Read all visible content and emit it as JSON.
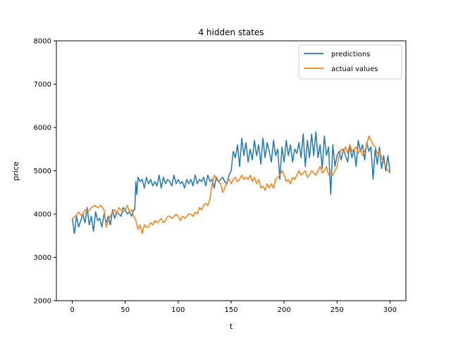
{
  "chart_data": {
    "type": "line",
    "title": "4 hidden states",
    "xlabel": "t",
    "ylabel": "price",
    "xlim": [
      -15,
      315
    ],
    "ylim": [
      2000,
      8000
    ],
    "xticks": [
      0,
      50,
      100,
      150,
      200,
      250,
      300
    ],
    "yticks": [
      2000,
      3000,
      4000,
      5000,
      6000,
      7000,
      8000
    ],
    "grid": false,
    "legend_position": "top-right",
    "colors": {
      "predictions": "#1f77b4",
      "actual": "#ff7f0e"
    },
    "series": [
      {
        "name": "predictions",
        "x": [
          0,
          2,
          4,
          6,
          8,
          10,
          12,
          14,
          16,
          18,
          20,
          22,
          24,
          26,
          28,
          30,
          32,
          34,
          36,
          38,
          40,
          42,
          44,
          46,
          48,
          50,
          52,
          54,
          56,
          58,
          59,
          60,
          61,
          62,
          64,
          66,
          68,
          70,
          72,
          74,
          76,
          78,
          80,
          82,
          84,
          86,
          88,
          90,
          92,
          94,
          96,
          98,
          100,
          102,
          104,
          106,
          108,
          110,
          112,
          114,
          116,
          118,
          120,
          122,
          124,
          126,
          128,
          130,
          132,
          134,
          136,
          138,
          140,
          142,
          144,
          146,
          148,
          149,
          150,
          152,
          154,
          156,
          158,
          160,
          162,
          164,
          166,
          168,
          170,
          172,
          174,
          176,
          178,
          180,
          182,
          184,
          186,
          188,
          190,
          192,
          194,
          196,
          198,
          200,
          202,
          204,
          206,
          208,
          210,
          212,
          214,
          216,
          218,
          220,
          222,
          224,
          226,
          228,
          230,
          232,
          234,
          236,
          238,
          240,
          242,
          244,
          246,
          248,
          250,
          252,
          254,
          256,
          258,
          260,
          262,
          264,
          266,
          268,
          270,
          272,
          274,
          276,
          278,
          280,
          282,
          284,
          286,
          288,
          290,
          292,
          294,
          296,
          298,
          300
        ],
        "y": [
          3900,
          3550,
          3950,
          3700,
          3850,
          4000,
          3800,
          4150,
          3750,
          3950,
          3600,
          4050,
          3850,
          3900,
          3700,
          4000,
          3800,
          3950,
          3750,
          4100,
          3900,
          4050,
          4000,
          3950,
          4150,
          4100,
          4000,
          4050,
          3950,
          4100,
          4100,
          4750,
          4450,
          4850,
          4750,
          4800,
          4600,
          4850,
          4700,
          4800,
          4650,
          4750,
          4650,
          4900,
          4600,
          4850,
          4700,
          4800,
          4750,
          4650,
          4900,
          4700,
          4800,
          4700,
          4750,
          4600,
          4800,
          4700,
          4800,
          4650,
          4900,
          4700,
          4800,
          4750,
          4850,
          4650,
          4900,
          4750,
          4800,
          4600,
          4850,
          4750,
          4800,
          4850,
          4750,
          4700,
          4900,
          4950,
          5000,
          5450,
          5300,
          5600,
          5100,
          5750,
          5350,
          5650,
          5200,
          5500,
          5250,
          5700,
          5350,
          5600,
          5150,
          5750,
          5300,
          5650,
          5450,
          5200,
          5700,
          5350,
          5500,
          4800,
          5550,
          5200,
          5700,
          5350,
          5600,
          5200,
          5500,
          5400,
          5650,
          5300,
          5850,
          5100,
          5700,
          5300,
          5850,
          5350,
          5900,
          5300,
          5600,
          5050,
          5800,
          5350,
          5550,
          4450,
          5600,
          5100,
          5350,
          5450,
          5250,
          5500,
          5350,
          5200,
          5600,
          5300,
          5500,
          5100,
          5700,
          5450,
          5600,
          5250,
          5650,
          5450,
          5550,
          4800,
          5500,
          5150,
          5550,
          5050,
          5350,
          5000,
          5350,
          4950
        ]
      },
      {
        "name": "actual values",
        "x": [
          0,
          3,
          6,
          9,
          12,
          15,
          18,
          21,
          24,
          27,
          30,
          31,
          32,
          34,
          36,
          38,
          40,
          42,
          44,
          46,
          48,
          50,
          52,
          54,
          56,
          58,
          60,
          62,
          64,
          66,
          68,
          70,
          72,
          74,
          76,
          78,
          80,
          82,
          84,
          86,
          88,
          90,
          92,
          94,
          96,
          98,
          100,
          102,
          104,
          106,
          108,
          110,
          112,
          114,
          116,
          118,
          120,
          122,
          124,
          126,
          128,
          130,
          132,
          134,
          136,
          138,
          140,
          142,
          144,
          146,
          148,
          150,
          152,
          154,
          156,
          158,
          160,
          162,
          164,
          166,
          168,
          170,
          172,
          174,
          176,
          178,
          180,
          182,
          184,
          186,
          188,
          190,
          192,
          194,
          196,
          198,
          200,
          202,
          204,
          206,
          208,
          210,
          212,
          214,
          216,
          218,
          220,
          222,
          224,
          226,
          228,
          230,
          232,
          234,
          236,
          238,
          240,
          242,
          244,
          246,
          248,
          250,
          252,
          254,
          256,
          258,
          260,
          262,
          264,
          266,
          268,
          270,
          272,
          274,
          276,
          278,
          280,
          282,
          284,
          286,
          288,
          290,
          292,
          294,
          296,
          298,
          300
        ],
        "y": [
          3900,
          3950,
          4050,
          3950,
          4100,
          4050,
          4150,
          4200,
          4150,
          4200,
          4100,
          3900,
          3700,
          3850,
          3950,
          4050,
          4100,
          4000,
          4150,
          4100,
          4050,
          4100,
          4200,
          4050,
          4100,
          3950,
          3850,
          3650,
          3750,
          3550,
          3750,
          3700,
          3700,
          3800,
          3750,
          3850,
          3800,
          3850,
          3900,
          3800,
          3850,
          3950,
          3950,
          3900,
          3950,
          4000,
          3950,
          3850,
          3950,
          3900,
          3950,
          4000,
          4000,
          3950,
          4050,
          4000,
          4150,
          4100,
          4200,
          4250,
          4200,
          4350,
          4700,
          4900,
          4800,
          4750,
          4700,
          4500,
          4600,
          4750,
          4800,
          4700,
          4800,
          4850,
          4750,
          4800,
          4900,
          4800,
          4850,
          4800,
          4900,
          4750,
          4850,
          4700,
          4800,
          4600,
          4650,
          4550,
          4700,
          4600,
          4700,
          4600,
          4800,
          4850,
          4900,
          5000,
          4900,
          4750,
          4800,
          4700,
          4850,
          4800,
          4900,
          5000,
          4900,
          4950,
          5000,
          4850,
          4900,
          5000,
          4950,
          4900,
          5000,
          5100,
          4950,
          5000,
          5100,
          4900,
          4950,
          4900,
          5000,
          5100,
          5350,
          5500,
          5450,
          5550,
          5400,
          5600,
          5450,
          5500,
          5550,
          5400,
          5500,
          5350,
          5450,
          5600,
          5800,
          5700,
          5600,
          5550,
          5400,
          5450,
          5300,
          5200,
          5100,
          5000,
          4950
        ]
      }
    ]
  }
}
